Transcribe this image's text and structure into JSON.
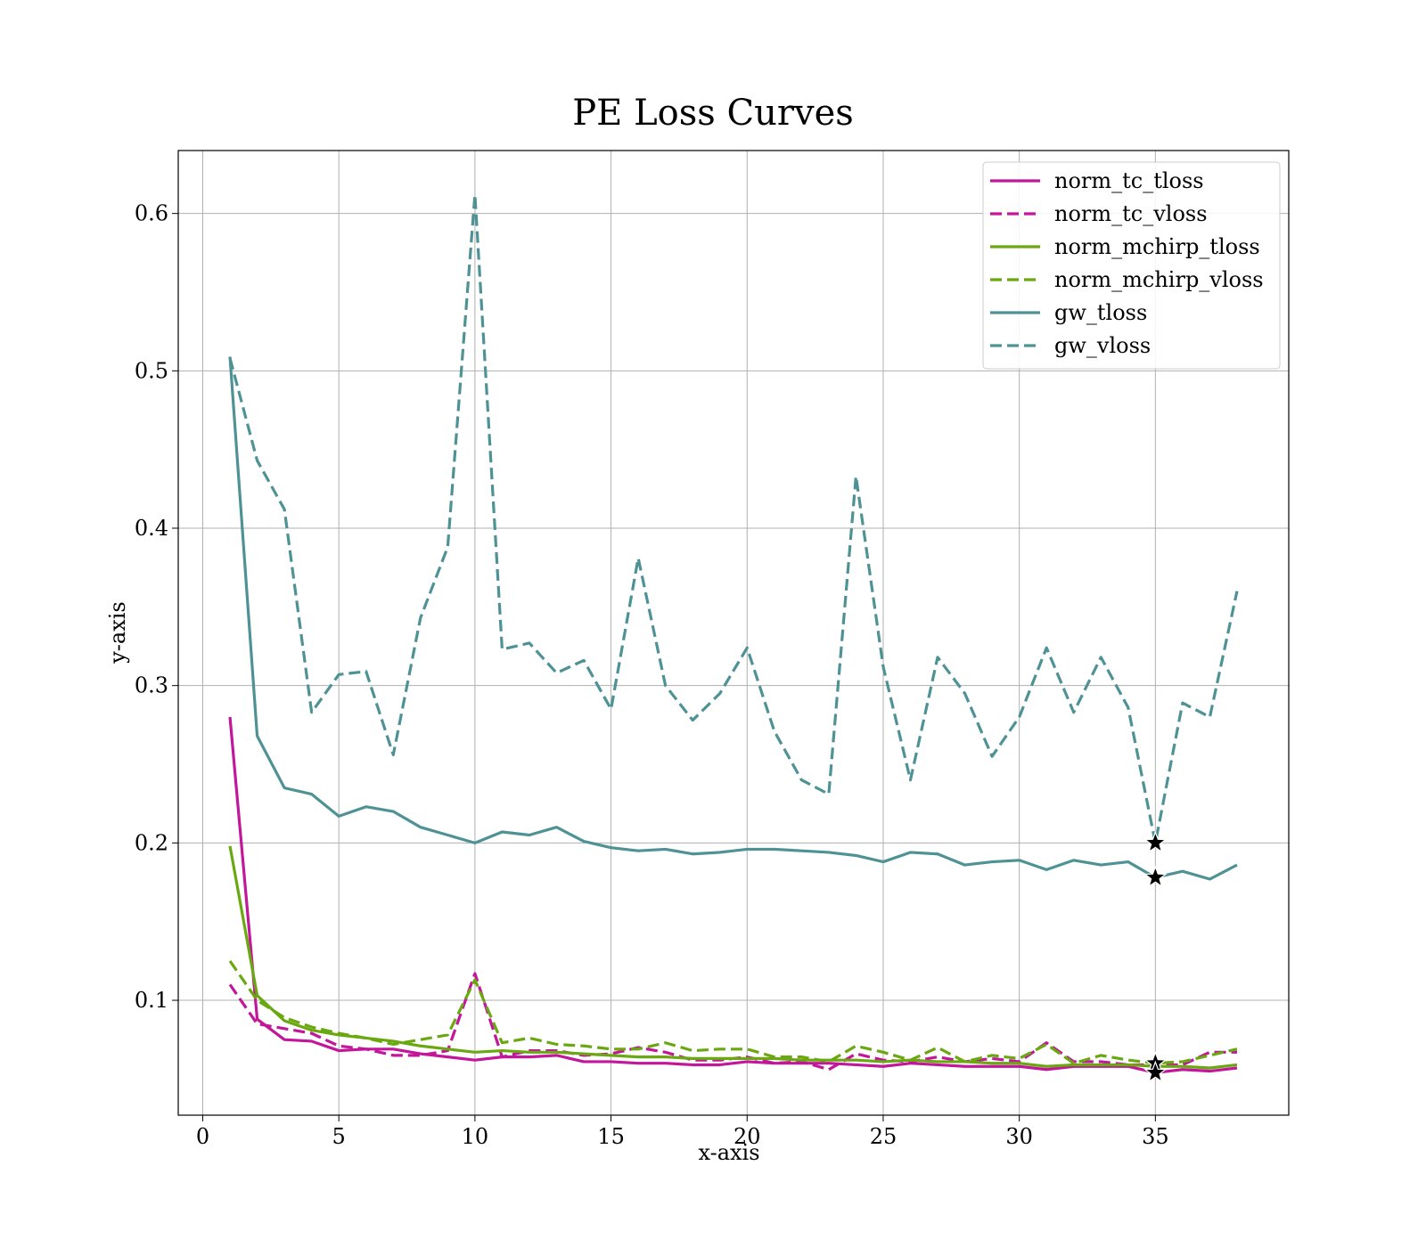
{
  "chart_data": {
    "type": "line",
    "title": "PE Loss Curves",
    "xlabel": "x-axis",
    "ylabel": "y-axis",
    "xlim": [
      -0.9,
      39.9
    ],
    "ylim": [
      0.027,
      0.64
    ],
    "xticks": [
      0,
      5,
      10,
      15,
      20,
      25,
      30,
      35
    ],
    "yticks": [
      0.1,
      0.2,
      0.3,
      0.4,
      0.5,
      0.6
    ],
    "grid": true,
    "legend_position": "top-right",
    "x": [
      1,
      2,
      3,
      4,
      5,
      6,
      7,
      8,
      9,
      10,
      11,
      12,
      13,
      14,
      15,
      16,
      17,
      18,
      19,
      20,
      21,
      22,
      23,
      24,
      25,
      26,
      27,
      28,
      29,
      30,
      31,
      32,
      33,
      34,
      35,
      36,
      37,
      38
    ],
    "series": [
      {
        "name": "norm_tc_tloss",
        "color": "#c2179a",
        "style": "solid",
        "values": [
          0.28,
          0.088,
          0.075,
          0.074,
          0.068,
          0.069,
          0.069,
          0.066,
          0.064,
          0.062,
          0.064,
          0.064,
          0.065,
          0.061,
          0.061,
          0.06,
          0.06,
          0.059,
          0.059,
          0.061,
          0.06,
          0.06,
          0.06,
          0.059,
          0.058,
          0.06,
          0.059,
          0.058,
          0.058,
          0.058,
          0.056,
          0.058,
          0.058,
          0.058,
          0.054,
          0.056,
          0.055,
          0.057
        ]
      },
      {
        "name": "norm_tc_vloss",
        "color": "#c2179a",
        "style": "dashed",
        "values": [
          0.11,
          0.085,
          0.082,
          0.079,
          0.071,
          0.069,
          0.065,
          0.065,
          0.068,
          0.117,
          0.064,
          0.068,
          0.068,
          0.065,
          0.066,
          0.07,
          0.067,
          0.062,
          0.062,
          0.064,
          0.06,
          0.061,
          0.056,
          0.066,
          0.062,
          0.061,
          0.064,
          0.061,
          0.063,
          0.061,
          0.073,
          0.061,
          0.061,
          0.059,
          0.059,
          0.059,
          0.067,
          0.067
        ]
      },
      {
        "name": "norm_mchirp_tloss",
        "color": "#6aa811",
        "style": "solid",
        "values": [
          0.198,
          0.103,
          0.087,
          0.081,
          0.078,
          0.076,
          0.074,
          0.071,
          0.069,
          0.067,
          0.068,
          0.067,
          0.067,
          0.066,
          0.065,
          0.064,
          0.064,
          0.063,
          0.063,
          0.063,
          0.063,
          0.062,
          0.062,
          0.062,
          0.061,
          0.062,
          0.061,
          0.061,
          0.06,
          0.06,
          0.058,
          0.059,
          0.059,
          0.059,
          0.058,
          0.058,
          0.057,
          0.059
        ]
      },
      {
        "name": "norm_mchirp_vloss",
        "color": "#6aa811",
        "style": "dashed",
        "values": [
          0.125,
          0.1,
          0.089,
          0.083,
          0.079,
          0.076,
          0.072,
          0.075,
          0.078,
          0.113,
          0.073,
          0.076,
          0.072,
          0.071,
          0.069,
          0.069,
          0.073,
          0.068,
          0.069,
          0.069,
          0.064,
          0.064,
          0.061,
          0.071,
          0.067,
          0.062,
          0.07,
          0.061,
          0.065,
          0.063,
          0.072,
          0.06,
          0.065,
          0.062,
          0.06,
          0.061,
          0.065,
          0.069
        ]
      },
      {
        "name": "gw_tloss",
        "color": "#4f9295",
        "style": "solid",
        "values": [
          0.509,
          0.268,
          0.235,
          0.231,
          0.217,
          0.223,
          0.22,
          0.21,
          0.205,
          0.2,
          0.207,
          0.205,
          0.21,
          0.201,
          0.197,
          0.195,
          0.196,
          0.193,
          0.194,
          0.196,
          0.196,
          0.195,
          0.194,
          0.192,
          0.188,
          0.194,
          0.193,
          0.186,
          0.188,
          0.189,
          0.183,
          0.189,
          0.186,
          0.188,
          0.178,
          0.182,
          0.177,
          0.186
        ]
      },
      {
        "name": "gw_vloss",
        "color": "#4f9295",
        "style": "dashed",
        "values": [
          0.508,
          0.443,
          0.412,
          0.283,
          0.307,
          0.309,
          0.256,
          0.343,
          0.388,
          0.612,
          0.323,
          0.327,
          0.308,
          0.316,
          0.285,
          0.381,
          0.3,
          0.278,
          0.295,
          0.324,
          0.271,
          0.24,
          0.231,
          0.433,
          0.312,
          0.24,
          0.318,
          0.295,
          0.255,
          0.28,
          0.324,
          0.283,
          0.318,
          0.286,
          0.2,
          0.289,
          0.28,
          0.36
        ]
      }
    ],
    "markers": [
      {
        "marker": "star",
        "x": 35,
        "y": 0.2
      },
      {
        "marker": "star",
        "x": 35,
        "y": 0.178
      },
      {
        "marker": "star",
        "x": 35,
        "y": 0.06
      },
      {
        "marker": "star",
        "x": 35,
        "y": 0.054
      }
    ]
  }
}
